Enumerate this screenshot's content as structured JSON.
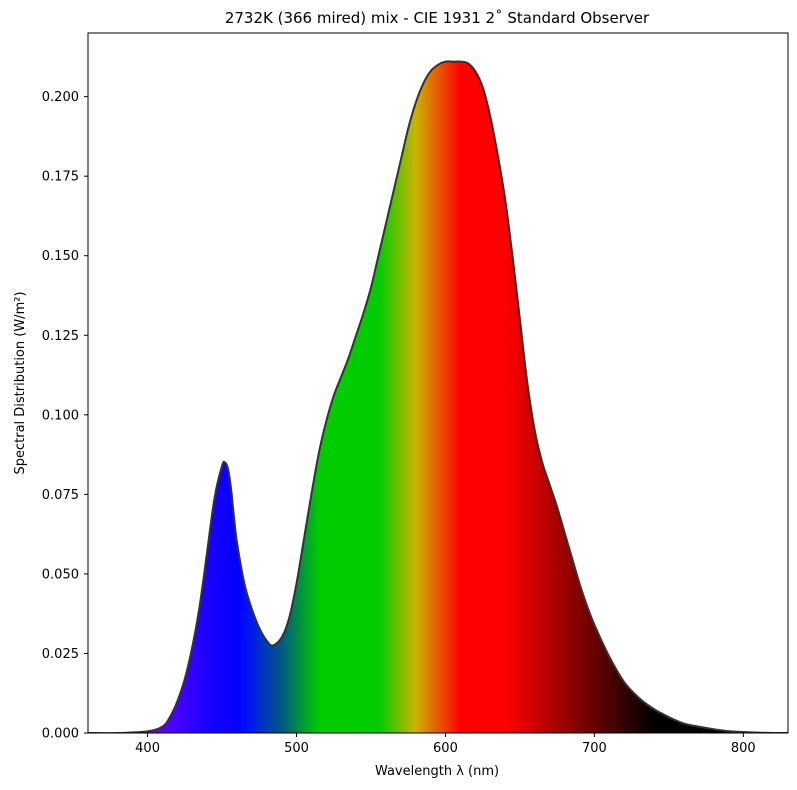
{
  "chart_data": {
    "type": "area",
    "title": "2732K (366 mired) mix - CIE 1931 2˚ Standard Observer",
    "xlabel": "Wavelength λ (nm)",
    "ylabel": "Spectral Distribution (W/m²)",
    "xlim": [
      360,
      830
    ],
    "ylim": [
      0,
      0.22
    ],
    "x_ticks": [
      {
        "value": 400,
        "label": "400"
      },
      {
        "value": 500,
        "label": "500"
      },
      {
        "value": 600,
        "label": "600"
      },
      {
        "value": 700,
        "label": "700"
      },
      {
        "value": 800,
        "label": "800"
      }
    ],
    "y_ticks": [
      {
        "value": 0.0,
        "label": "0.000"
      },
      {
        "value": 0.025,
        "label": "0.025"
      },
      {
        "value": 0.05,
        "label": "0.050"
      },
      {
        "value": 0.075,
        "label": "0.075"
      },
      {
        "value": 0.1,
        "label": "0.100"
      },
      {
        "value": 0.125,
        "label": "0.125"
      },
      {
        "value": 0.15,
        "label": "0.150"
      },
      {
        "value": 0.175,
        "label": "0.175"
      },
      {
        "value": 0.2,
        "label": "0.200"
      }
    ],
    "grid": false,
    "legend": "none",
    "fill": "wavelength-color spectrum",
    "series": [
      {
        "x": [
          360,
          380,
          400,
          410,
          415,
          420,
          425,
          430,
          435,
          440,
          445,
          450,
          452,
          454,
          456,
          458,
          460,
          465,
          470,
          475,
          480,
          484,
          490,
          495,
          500,
          505,
          510,
          515,
          520,
          525,
          530,
          535,
          540,
          545,
          550,
          555,
          560,
          565,
          570,
          575,
          580,
          585,
          590,
          595,
          600,
          605,
          610,
          615,
          620,
          625,
          630,
          635,
          640,
          645,
          650,
          655,
          660,
          665,
          670,
          675,
          680,
          685,
          690,
          695,
          700,
          710,
          720,
          730,
          740,
          750,
          760,
          770,
          780,
          790,
          800,
          810,
          820,
          830
        ],
        "y": [
          0.0,
          0.0,
          0.0005,
          0.002,
          0.005,
          0.01,
          0.017,
          0.027,
          0.04,
          0.057,
          0.074,
          0.084,
          0.085,
          0.083,
          0.077,
          0.068,
          0.06,
          0.047,
          0.039,
          0.033,
          0.029,
          0.0275,
          0.03,
          0.036,
          0.047,
          0.061,
          0.075,
          0.088,
          0.098,
          0.106,
          0.112,
          0.118,
          0.125,
          0.132,
          0.14,
          0.15,
          0.16,
          0.17,
          0.18,
          0.19,
          0.198,
          0.204,
          0.208,
          0.21,
          0.211,
          0.211,
          0.211,
          0.2105,
          0.208,
          0.203,
          0.194,
          0.182,
          0.168,
          0.15,
          0.13,
          0.11,
          0.095,
          0.085,
          0.078,
          0.071,
          0.063,
          0.055,
          0.047,
          0.04,
          0.034,
          0.024,
          0.016,
          0.011,
          0.0075,
          0.005,
          0.003,
          0.002,
          0.0012,
          0.0006,
          0.0003,
          0.0001,
          0.0,
          0.0
        ]
      }
    ]
  }
}
